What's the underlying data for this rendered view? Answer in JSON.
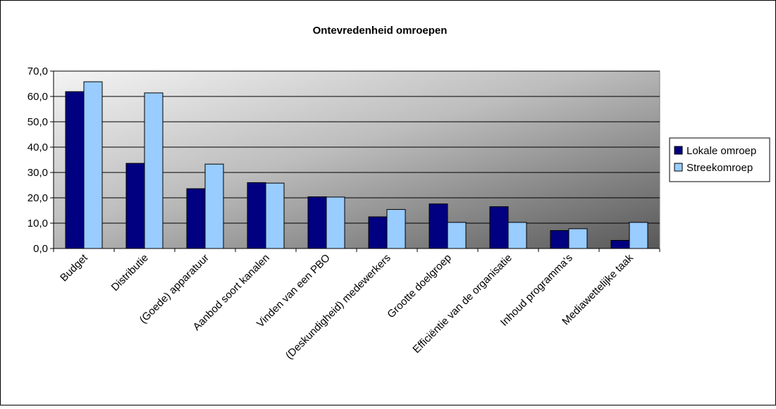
{
  "chart_data": {
    "type": "bar",
    "title": "Ontevredenheid omroepen",
    "xlabel": "",
    "ylabel": "",
    "ylim": [
      0,
      70
    ],
    "yticks": [
      0,
      10,
      20,
      30,
      40,
      50,
      60,
      70
    ],
    "ytick_labels": [
      "0,0",
      "10,0",
      "20,0",
      "30,0",
      "40,0",
      "50,0",
      "60,0",
      "70,0"
    ],
    "grid": true,
    "legend_position": "right",
    "categories": [
      "Budget",
      "Distributie",
      "(Goede) apparatuur",
      "Aanbod soort kanalen",
      "Vinden van een PBO",
      "(Deskundigheid) medewerkers",
      "Grootte doelgroep",
      "Efficiëntie van de organisatie",
      "Inhoud programma's",
      "Mediawettelijke taak"
    ],
    "series": [
      {
        "name": "Lokale omroep",
        "color": "#000080",
        "values": [
          61.9,
          33.6,
          23.6,
          26.0,
          20.4,
          12.5,
          17.6,
          16.5,
          7.1,
          3.2
        ]
      },
      {
        "name": "Streekomroep",
        "color": "#99ccff",
        "values": [
          65.8,
          61.4,
          33.3,
          25.8,
          20.3,
          15.4,
          10.3,
          10.3,
          7.8,
          10.3
        ]
      }
    ]
  }
}
